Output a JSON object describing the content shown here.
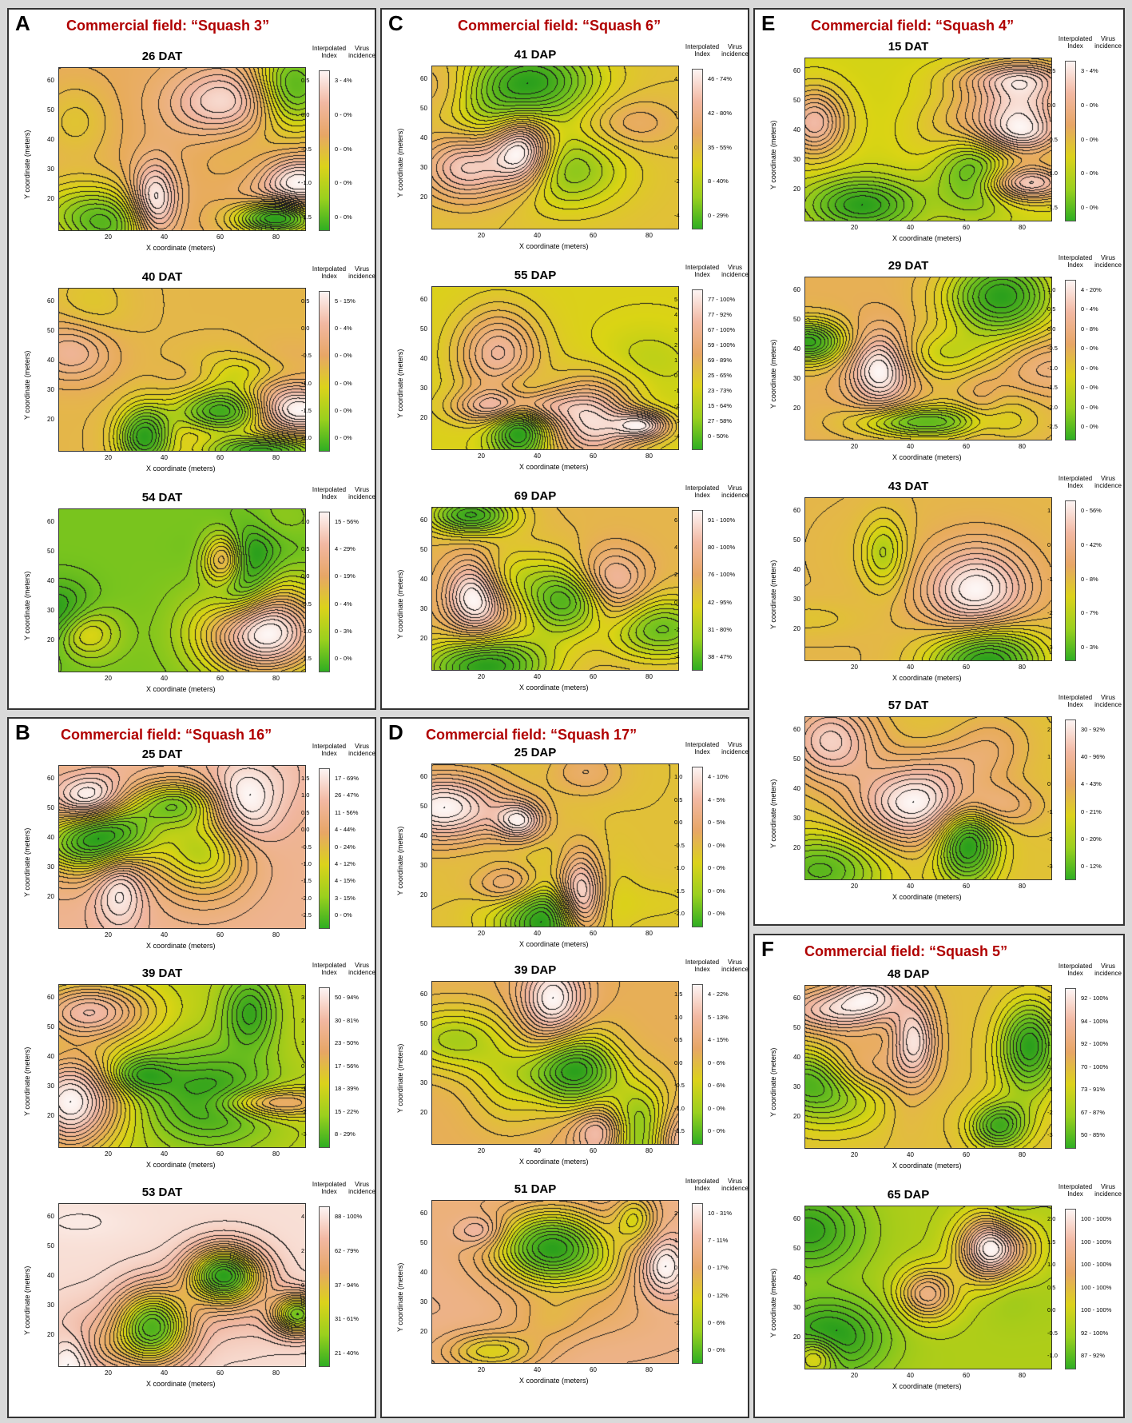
{
  "legend": {
    "index_title": "Interpolated Index",
    "virus_title": "Virus incidence"
  },
  "axes": {
    "x_label": "X coordinate (meters)",
    "y_label": "Y coordinate (meters)",
    "x_ticks": [
      "20",
      "40",
      "60",
      "80"
    ],
    "y_ticks": [
      "60",
      "50",
      "40",
      "30",
      "20"
    ]
  },
  "panels": [
    {
      "letter": "A",
      "title": "Commercial field: “Squash 3”",
      "plots": [
        {
          "label": "26 DAT",
          "index_ticks": [
            "0.5",
            "0.0",
            "-0.5",
            "-1.0",
            "-1.5"
          ],
          "incidence": [
            "3 - 4%",
            "0 - 0%",
            "0 - 0%",
            "0 - 0%",
            "0 - 0%"
          ]
        },
        {
          "label": "40 DAT",
          "index_ticks": [
            "0.5",
            "0.0",
            "-0.5",
            "-1.0",
            "-1.5",
            "-2.0"
          ],
          "incidence": [
            "5 - 15%",
            "0 - 4%",
            "0 - 0%",
            "0 - 0%",
            "0 - 0%",
            "0 - 0%"
          ]
        },
        {
          "label": "54 DAT",
          "index_ticks": [
            "1.0",
            "0.5",
            "0.0",
            "-0.5",
            "-1.0",
            "-1.5"
          ],
          "incidence": [
            "15 - 56%",
            "4 - 29%",
            "0 - 19%",
            "0 - 4%",
            "0 - 3%",
            "0 - 0%"
          ]
        }
      ]
    },
    {
      "letter": "B",
      "title": "Commercial field: “Squash 16”",
      "plots": [
        {
          "label": "25 DAT",
          "index_ticks": [
            "1.5",
            "1.0",
            "0.5",
            "0.0",
            "-0.5",
            "-1.0",
            "-1.5",
            "-2.0",
            "-2.5"
          ],
          "incidence": [
            "17 - 69%",
            "26 - 47%",
            "11 - 56%",
            "4 - 44%",
            "0 - 24%",
            "4 - 12%",
            "4 - 15%",
            "3 - 15%",
            "0 - 0%"
          ]
        },
        {
          "label": "39 DAT",
          "index_ticks": [
            "3",
            "2",
            "1",
            "0",
            "-1",
            "-2",
            "-3"
          ],
          "incidence": [
            "50 - 94%",
            "30 - 81%",
            "23 - 50%",
            "17 - 56%",
            "18 - 39%",
            "15 - 22%",
            "8 - 29%"
          ]
        },
        {
          "label": "53 DAT",
          "index_ticks": [
            "4",
            "2",
            "0",
            "-2",
            "-4"
          ],
          "incidence": [
            "88 - 100%",
            "62 - 79%",
            "37 - 94%",
            "31 - 61%",
            "21 - 40%"
          ]
        }
      ]
    },
    {
      "letter": "C",
      "title": "Commercial field: “Squash 6”",
      "plots": [
        {
          "label": "41 DAP",
          "index_ticks": [
            "4",
            "2",
            "0",
            "-2",
            "-4"
          ],
          "incidence": [
            "46 - 74%",
            "42 - 80%",
            "35 - 55%",
            "8 - 40%",
            "0 - 29%"
          ]
        },
        {
          "label": "55 DAP",
          "index_ticks": [
            "5",
            "4",
            "3",
            "2",
            "1",
            "0",
            "-1",
            "-2",
            "-3",
            "-4"
          ],
          "incidence": [
            "77 - 100%",
            "77 - 92%",
            "67 - 100%",
            "59 - 100%",
            "69 - 89%",
            "25 - 65%",
            "23 - 73%",
            "15 - 64%",
            "27 - 58%",
            "0 - 50%"
          ]
        },
        {
          "label": "69 DAP",
          "index_ticks": [
            "6",
            "4",
            "2",
            "0",
            "-2",
            "-4"
          ],
          "incidence": [
            "91 - 100%",
            "80 - 100%",
            "76 - 100%",
            "42 - 95%",
            "31 - 80%",
            "38 - 47%"
          ]
        }
      ]
    },
    {
      "letter": "D",
      "title": "Commercial field: “Squash 17”",
      "plots": [
        {
          "label": "25 DAP",
          "index_ticks": [
            "1.0",
            "0.5",
            "0.0",
            "-0.5",
            "-1.0",
            "-1.5",
            "-2.0"
          ],
          "incidence": [
            "4 - 10%",
            "4 - 5%",
            "0 - 5%",
            "0 - 0%",
            "0 - 0%",
            "0 - 0%",
            "0 - 0%"
          ]
        },
        {
          "label": "39 DAP",
          "index_ticks": [
            "1.5",
            "1.0",
            "0.5",
            "0.0",
            "-0.5",
            "-1.0",
            "-1.5"
          ],
          "incidence": [
            "4 - 22%",
            "5 - 13%",
            "4 - 15%",
            "0 - 6%",
            "0 - 6%",
            "0 - 0%",
            "0 - 0%"
          ]
        },
        {
          "label": "51 DAP",
          "index_ticks": [
            "2",
            "1",
            "0",
            "-1",
            "-2",
            "-3"
          ],
          "incidence": [
            "10 - 31%",
            "7 - 11%",
            "0 - 17%",
            "0 - 12%",
            "0 - 6%",
            "0 - 0%"
          ]
        }
      ]
    },
    {
      "letter": "E",
      "title": "Commercial field: “Squash 4”",
      "plots": [
        {
          "label": "15 DAT",
          "index_ticks": [
            "0.5",
            "0.0",
            "-0.5",
            "-1.0",
            "-1.5"
          ],
          "incidence": [
            "3 - 4%",
            "0 - 0%",
            "0 - 0%",
            "0 - 0%",
            "0 - 0%"
          ]
        },
        {
          "label": "29 DAT",
          "index_ticks": [
            "1.0",
            "0.5",
            "0.0",
            "-0.5",
            "-1.0",
            "-1.5",
            "-2.0",
            "-2.5"
          ],
          "incidence": [
            "4 - 20%",
            "0 - 4%",
            "0 - 8%",
            "0 - 0%",
            "0 - 0%",
            "0 - 0%",
            "0 - 0%",
            "0 - 0%"
          ]
        },
        {
          "label": "43 DAT",
          "index_ticks": [
            "1",
            "0",
            "-1",
            "-2",
            "-3"
          ],
          "incidence": [
            "0 - 56%",
            "0 - 42%",
            "0 - 8%",
            "0 - 7%",
            "0 - 3%"
          ]
        },
        {
          "label": "57 DAT",
          "index_ticks": [
            "2",
            "1",
            "0",
            "-1",
            "-2",
            "-3"
          ],
          "incidence": [
            "30 - 92%",
            "40 - 96%",
            "4 - 43%",
            "0 - 21%",
            "0 - 20%",
            "0 - 12%"
          ]
        }
      ]
    },
    {
      "letter": "F",
      "title": "Commercial field: “Squash 5”",
      "plots": [
        {
          "label": "48 DAP",
          "index_ticks": [
            "3",
            "2",
            "1",
            "0",
            "-1",
            "-2",
            "-3"
          ],
          "incidence": [
            "92 - 100%",
            "94 - 100%",
            "92 - 100%",
            "70 - 100%",
            "73 - 91%",
            "67 - 87%",
            "50 - 85%"
          ]
        },
        {
          "label": "65 DAP",
          "index_ticks": [
            "2.0",
            "1.5",
            "1.0",
            "0.5",
            "0.0",
            "-0.5",
            "-1.0"
          ],
          "incidence": [
            "100 - 100%",
            "100 - 100%",
            "100 - 100%",
            "100 - 100%",
            "100 - 100%",
            "92 - 100%",
            "87 - 92%"
          ]
        }
      ]
    }
  ]
}
